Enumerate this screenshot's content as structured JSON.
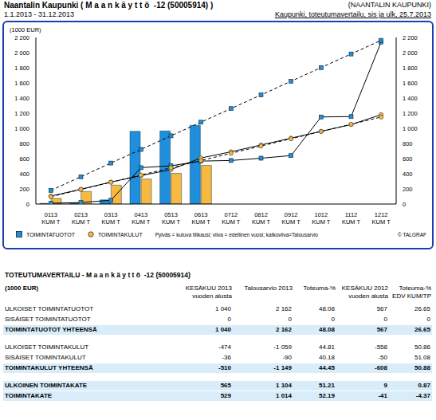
{
  "header": {
    "title": "Naantalin Kaupunki ( M a a n k ä y t t ö  -12 (50005914) )",
    "organization": "(NAANTALIN KAUPUNKI)",
    "period": "1.1.2013 - 31.12.2013",
    "report": "Kaupunki, toteutumavertailu, sis ja ulk, 25.7.2013"
  },
  "chart_data": {
    "type": "bar",
    "y_label": "(1000 EUR)",
    "categories": [
      "0113 KUM T",
      "0213 KUM T",
      "0313 KUM T",
      "0413 KUM T",
      "0513 KUM T",
      "0613 KUM T",
      "0712 KUM T",
      "0812 KUM T",
      "0912 KUM T",
      "1012 KUM T",
      "1112 KUM T",
      "1212 KUM T"
    ],
    "series": [
      {
        "name": "TOIMINTATUOTOT",
        "type": "bar",
        "color": "#1f8fdc",
        "marker": "square",
        "values": [
          8,
          12,
          55,
          960,
          965,
          1040,
          null,
          null,
          null,
          null,
          null,
          null
        ]
      },
      {
        "name": "TOIMINTAKULUT",
        "type": "bar",
        "color": "#f7b940",
        "marker": "circle",
        "values": [
          75,
          165,
          250,
          330,
          405,
          510,
          null,
          null,
          null,
          null,
          null,
          null
        ]
      },
      {
        "type": "line",
        "color": "#000000",
        "marker": "square",
        "line_style": "solid",
        "values": [
          10,
          20,
          50,
          480,
          505,
          567,
          575,
          605,
          640,
          1150,
          1155,
          2140
        ]
      },
      {
        "type": "line",
        "color": "#000000",
        "marker": "circle",
        "line_style": "solid",
        "values": [
          105,
          195,
          290,
          375,
          455,
          608,
          690,
          780,
          870,
          960,
          1050,
          1180
        ]
      },
      {
        "type": "line",
        "color": "#000000",
        "marker": "square",
        "line_style": "dashed",
        "values": [
          180,
          360,
          541,
          721,
          901,
          1081,
          1261,
          1441,
          1622,
          1802,
          1982,
          2162
        ]
      },
      {
        "type": "line",
        "color": "#000000",
        "marker": "circle",
        "line_style": "dashed",
        "values": [
          96,
          192,
          287,
          383,
          479,
          575,
          670,
          766,
          862,
          958,
          1053,
          1149
        ]
      }
    ],
    "ylim": [
      0,
      2200
    ],
    "yticks": [
      0,
      200,
      400,
      600,
      800,
      {
        "value": 1000,
        "label": "1 000"
      },
      {
        "value": 1200,
        "label": "1 200"
      },
      {
        "value": 1400,
        "label": "1 400"
      },
      {
        "value": 1600,
        "label": "1 600"
      },
      {
        "value": 1800,
        "label": "1 800"
      },
      {
        "value": 2000,
        "label": "2 000"
      },
      {
        "value": 2200,
        "label": "2 200"
      }
    ],
    "y2lim": [
      0,
      2200
    ],
    "y2ticks": [
      0,
      200,
      400,
      600,
      800,
      {
        "value": 1000,
        "label": "1 000"
      },
      {
        "value": 1200,
        "label": "1 200"
      },
      {
        "value": 1400,
        "label": "1 400"
      },
      {
        "value": 1600,
        "label": "1 600"
      },
      {
        "value": 1800,
        "label": "1 800"
      },
      {
        "value": 2000,
        "label": "2 000"
      },
      {
        "value": 2200,
        "label": "2 200"
      }
    ],
    "grid": false,
    "legend": "bottom",
    "note": "Pylväs = kuluva tilikausi; viiva = edellinen vuosi; katkoviiva=Talousarvio",
    "copyright": "© TALGRAF"
  },
  "table": {
    "title": "TOTEUTUMAVERTAILU - M a a n k ä y t t ö  -12 (50005914)",
    "columns": [
      [
        "(1000 EUR)"
      ],
      [
        "KESÄKUU 2013",
        "vuoden alusta"
      ],
      [
        "Talousarvio 2013"
      ],
      [
        "Toteuma-%"
      ],
      [
        "KESÄKUU 2012",
        "vuoden alusta"
      ],
      [
        "Toteuma-%",
        "EDV KUM/TP"
      ]
    ],
    "sections": [
      {
        "rows": [
          [
            "ULKOISET TOIMINTATUOTOT",
            "1 040",
            "2 162",
            "48.08",
            "567",
            "26.65"
          ],
          [
            "SISÄISET TOIMINTATUOTOT",
            "0",
            "0",
            "0",
            "0",
            "0"
          ]
        ],
        "totals": [
          [
            "TOIMINTATUOTOT YHTEENSÄ",
            "1 040",
            "2 162",
            "48.08",
            "567",
            "26.65"
          ]
        ]
      },
      {
        "rows": [
          [
            "ULKOISET TOIMINTAKULUT",
            "-474",
            "-1 059",
            "44.81",
            "-558",
            "50.86"
          ],
          [
            "SISÄISET TOIMINTAKULUT",
            "-36",
            "-90",
            "40.18",
            "-50",
            "51.08"
          ]
        ],
        "totals": [
          [
            "TOIMINTAKULUT YHTEENSÄ",
            "-510",
            "-1 149",
            "44.45",
            "-608",
            "50.88"
          ]
        ]
      },
      {
        "rows": [],
        "totals": [
          [
            "ULKOINEN TOIMINTAKATE",
            "565",
            "1 104",
            "51.21",
            "9",
            "0.87"
          ],
          [
            "TOIMINTAKATE",
            "529",
            "1 014",
            "52.19",
            "-41",
            "-4.37"
          ]
        ]
      }
    ]
  }
}
